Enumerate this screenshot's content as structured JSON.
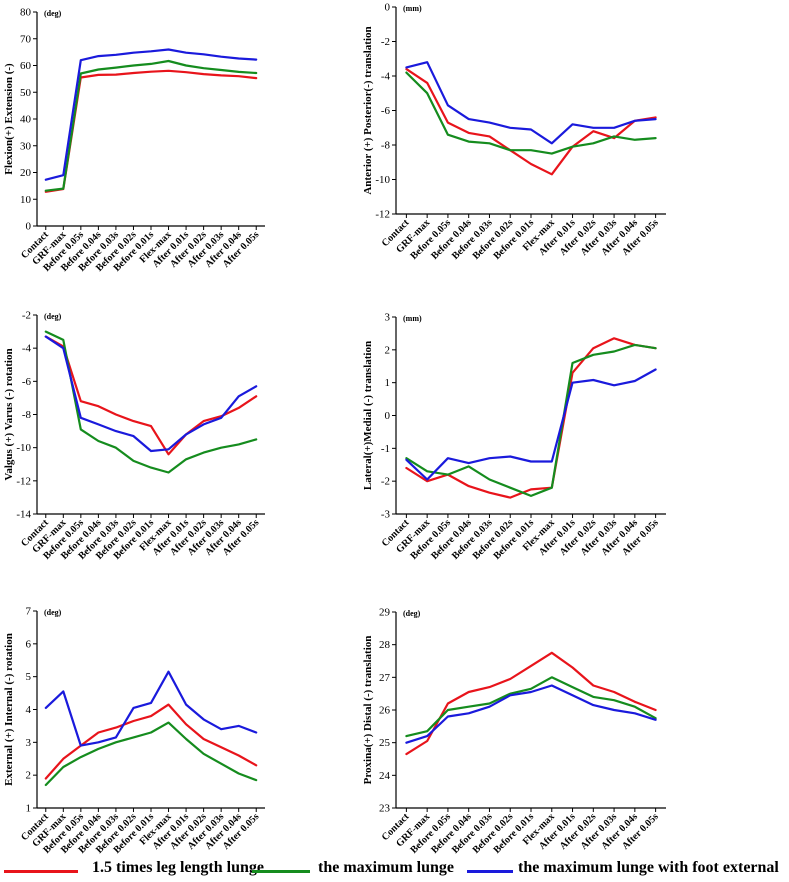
{
  "categories": [
    "Contact",
    "GRF-max",
    "Before 0.05s",
    "Before 0.04s",
    "Before 0.03s",
    "Before 0.02s",
    "Before 0.01s",
    "Flex-max",
    "After 0.01s",
    "After 0.02s",
    "After 0.03s",
    "After 0.04s",
    "After 0.05s"
  ],
  "colors": {
    "series1": "#e8141b",
    "series2": "#158c1e",
    "series3": "#1a1adc"
  },
  "legend": [
    {
      "label": "1.5 times leg length lunge",
      "color": "#e8141b"
    },
    {
      "label": "the maximum lunge",
      "color": "#158c1e"
    },
    {
      "label": "the maximum lunge with foot external",
      "color": "#1a1adc"
    }
  ],
  "chart_data": [
    {
      "type": "line",
      "unit": "(deg)",
      "ylabel": "Flexion(+) Extension (-)",
      "ylim": [
        0,
        80
      ],
      "yticks": [
        0,
        10,
        20,
        30,
        40,
        50,
        60,
        70,
        80
      ],
      "series": [
        {
          "name": "1.5 times leg length lunge",
          "values": [
            12.8,
            13.8,
            55.5,
            56.5,
            56.6,
            57.2,
            57.7,
            58.0,
            57.5,
            56.8,
            56.3,
            56.0,
            55.3
          ]
        },
        {
          "name": "the maximum lunge",
          "values": [
            13.2,
            14.0,
            57.0,
            58.5,
            59.2,
            60.0,
            60.6,
            61.7,
            60.0,
            59.0,
            58.3,
            57.6,
            57.2
          ]
        },
        {
          "name": "the maximum lunge with foot external",
          "values": [
            17.3,
            19.0,
            62.0,
            63.5,
            64.0,
            64.8,
            65.3,
            66.0,
            64.8,
            64.2,
            63.3,
            62.6,
            62.2
          ]
        }
      ]
    },
    {
      "type": "line",
      "unit": "(mm)",
      "ylabel": "Anterior (+) Posterior(-) translation",
      "ylim": [
        -12,
        0
      ],
      "yticks": [
        -12,
        -10,
        -8,
        -6,
        -4,
        -2,
        0
      ],
      "series": [
        {
          "name": "1.5 times leg length lunge",
          "values": [
            -3.6,
            -4.4,
            -6.7,
            -7.3,
            -7.5,
            -8.3,
            -9.1,
            -9.7,
            -8.1,
            -7.2,
            -7.6,
            -6.6,
            -6.4
          ]
        },
        {
          "name": "the maximum lunge",
          "values": [
            -3.8,
            -5.0,
            -7.4,
            -7.8,
            -7.9,
            -8.3,
            -8.3,
            -8.5,
            -8.1,
            -7.9,
            -7.5,
            -7.7,
            -7.6
          ]
        },
        {
          "name": "the maximum lunge with foot external",
          "values": [
            -3.5,
            -3.2,
            -5.7,
            -6.5,
            -6.7,
            -7.0,
            -7.1,
            -7.9,
            -6.8,
            -7.0,
            -7.0,
            -6.6,
            -6.5
          ]
        }
      ]
    },
    {
      "type": "line",
      "unit": "(deg)",
      "ylabel": "Valgus (+) Varus (-) rotation",
      "ylim": [
        -14,
        -2
      ],
      "yticks": [
        -14,
        -12,
        -10,
        -8,
        -6,
        -4,
        -2
      ],
      "series": [
        {
          "name": "1.5 times leg length lunge",
          "values": [
            -3.3,
            -3.9,
            -7.2,
            -7.5,
            -8.0,
            -8.4,
            -8.7,
            -10.4,
            -9.2,
            -8.4,
            -8.1,
            -7.6,
            -6.9
          ]
        },
        {
          "name": "the maximum lunge",
          "values": [
            -3.0,
            -3.5,
            -8.9,
            -9.6,
            -10.0,
            -10.8,
            -11.2,
            -11.5,
            -10.7,
            -10.3,
            -10.0,
            -9.8,
            -9.5
          ]
        },
        {
          "name": "the maximum lunge with foot external",
          "values": [
            -3.3,
            -4.0,
            -8.2,
            -8.6,
            -9.0,
            -9.3,
            -10.2,
            -10.1,
            -9.2,
            -8.6,
            -8.2,
            -6.9,
            -6.3
          ]
        }
      ]
    },
    {
      "type": "line",
      "unit": "(mm)",
      "ylabel": "Lateral(+)Medial (-) translation",
      "ylim": [
        -3,
        3
      ],
      "yticks": [
        -3,
        -2,
        -1,
        0,
        1,
        2,
        3
      ],
      "series": [
        {
          "name": "1.5 times leg length lunge",
          "values": [
            -1.6,
            -2.0,
            -1.8,
            -2.15,
            -2.35,
            -2.5,
            -2.25,
            -2.2,
            1.3,
            2.05,
            2.35,
            2.15,
            2.05
          ]
        },
        {
          "name": "the maximum lunge",
          "values": [
            -1.3,
            -1.7,
            -1.8,
            -1.55,
            -1.95,
            -2.2,
            -2.45,
            -2.2,
            1.6,
            1.85,
            1.95,
            2.15,
            2.05
          ]
        },
        {
          "name": "the maximum lunge with foot external",
          "values": [
            -1.35,
            -1.95,
            -1.3,
            -1.45,
            -1.3,
            -1.25,
            -1.4,
            -1.4,
            1.0,
            1.08,
            0.92,
            1.05,
            1.4
          ]
        }
      ]
    },
    {
      "type": "line",
      "unit": "(deg)",
      "ylabel": "External (+) Internal (-) rotation",
      "ylim": [
        1,
        7
      ],
      "yticks": [
        1,
        2,
        3,
        4,
        5,
        6,
        7
      ],
      "series": [
        {
          "name": "1.5 times leg length lunge",
          "values": [
            1.9,
            2.5,
            2.9,
            3.3,
            3.45,
            3.65,
            3.8,
            4.15,
            3.55,
            3.1,
            2.85,
            2.6,
            2.3
          ]
        },
        {
          "name": "the maximum lunge",
          "values": [
            1.7,
            2.25,
            2.55,
            2.8,
            3.0,
            3.15,
            3.3,
            3.6,
            3.1,
            2.65,
            2.35,
            2.05,
            1.85
          ]
        },
        {
          "name": "the maximum lunge with foot external",
          "values": [
            4.05,
            4.55,
            2.9,
            3.0,
            3.15,
            4.05,
            4.2,
            5.15,
            4.15,
            3.7,
            3.4,
            3.5,
            3.3
          ]
        }
      ]
    },
    {
      "type": "line",
      "unit": "(deg)",
      "ylabel": "Proxina(+) Distal (-) translation",
      "ylim": [
        23,
        29
      ],
      "yticks": [
        23,
        24,
        25,
        26,
        27,
        28,
        29
      ],
      "series": [
        {
          "name": "1.5 times leg length lunge",
          "values": [
            24.65,
            25.05,
            26.2,
            26.55,
            26.7,
            26.95,
            27.35,
            27.75,
            27.3,
            26.75,
            26.55,
            26.25,
            26.0
          ]
        },
        {
          "name": "the maximum lunge",
          "values": [
            25.2,
            25.35,
            26.0,
            26.1,
            26.2,
            26.5,
            26.65,
            27.0,
            26.7,
            26.4,
            26.3,
            26.1,
            25.75
          ]
        },
        {
          "name": "the maximum lunge with foot external",
          "values": [
            25.0,
            25.2,
            25.8,
            25.9,
            26.1,
            26.45,
            26.55,
            26.75,
            26.45,
            26.15,
            26.0,
            25.9,
            25.7
          ]
        }
      ]
    }
  ]
}
